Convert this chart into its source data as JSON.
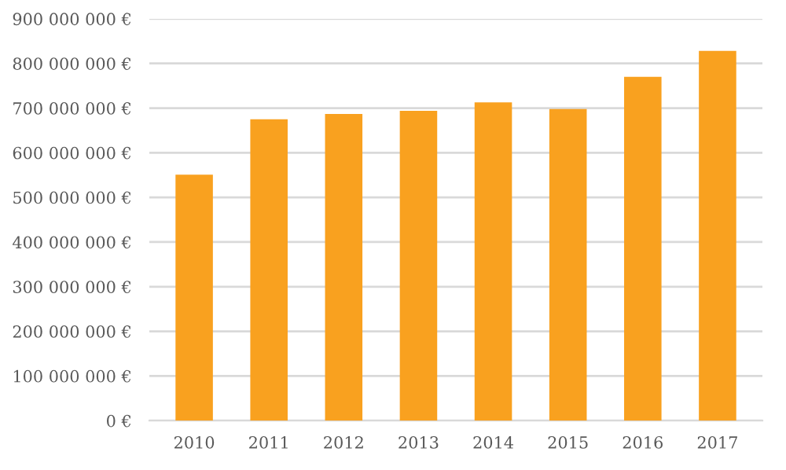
{
  "chart_data": {
    "type": "bar",
    "categories": [
      "2010",
      "2011",
      "2012",
      "2013",
      "2014",
      "2015",
      "2016",
      "2017"
    ],
    "values": [
      551000000,
      675000000,
      687000000,
      694000000,
      713000000,
      698000000,
      770000000,
      828000000
    ],
    "color": "#f9a11f",
    "ylim": [
      0,
      900000000
    ],
    "yticks": [
      {
        "value": 0,
        "label": "0 €"
      },
      {
        "value": 100000000,
        "label": "100 000 000 €"
      },
      {
        "value": 200000000,
        "label": "200 000 000 €"
      },
      {
        "value": 300000000,
        "label": "300 000 000 €"
      },
      {
        "value": 400000000,
        "label": "400 000 000 €"
      },
      {
        "value": 500000000,
        "label": "500 000 000 €"
      },
      {
        "value": 600000000,
        "label": "600 000 000 €"
      },
      {
        "value": 700000000,
        "label": "700 000 000 €"
      },
      {
        "value": 800000000,
        "label": "800 000 000 €"
      },
      {
        "value": 900000000,
        "label": "900 000 000 €"
      }
    ],
    "grid": "y"
  }
}
